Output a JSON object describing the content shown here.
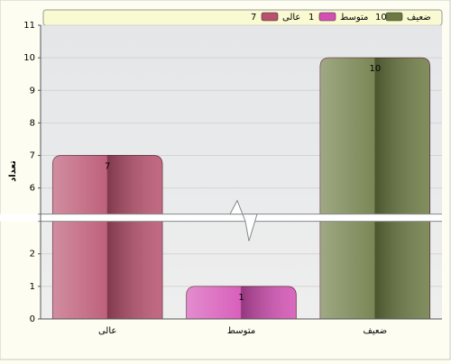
{
  "chart_data": {
    "type": "bar",
    "y_label": "تعداد",
    "categories": [
      "عالی",
      "متوسط",
      "ضعیف"
    ],
    "values": [
      7,
      1,
      10
    ],
    "colors": [
      "#b8506e",
      "#d44fb4",
      "#6b7a42"
    ],
    "ylim": [
      0,
      11
    ],
    "yticks": [
      0,
      1,
      2,
      6,
      7,
      8,
      9,
      10,
      11
    ],
    "axis_break": [
      3,
      5.2
    ],
    "grid": true
  }
}
